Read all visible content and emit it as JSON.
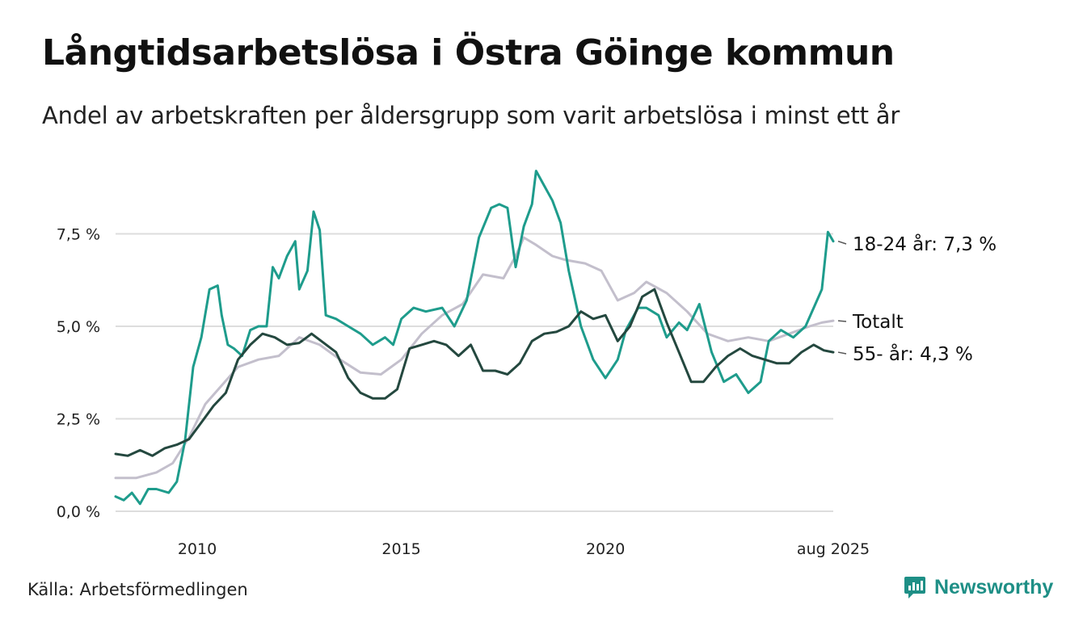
{
  "title": "Långtidsarbetslösa i Östra Göinge kommun",
  "subtitle": "Andel av arbetskraften per åldersgrupp som varit arbetslösa i minst ett år",
  "source": "Källa: Arbetsförmedlingen",
  "brand": "Newsworthy",
  "colors": {
    "youth": "#1e9c8c",
    "total": "#c3bfcc",
    "older": "#24483f",
    "grid": "#dddddd",
    "brand": "#1e8f86"
  },
  "chart_data": {
    "type": "line",
    "title": "Långtidsarbetslösa i Östra Göinge kommun",
    "subtitle": "Andel av arbetskraften per åldersgrupp som varit arbetslösa i minst ett år",
    "xlabel": "",
    "ylabel": "",
    "xlim": [
      2008.0,
      2025.58
    ],
    "ylim": [
      0,
      9.3
    ],
    "grid": "horizontal",
    "y_ticks": [
      0,
      2.5,
      5.0,
      7.5
    ],
    "y_tick_labels": [
      "0,0 %",
      "2,5 %",
      "5,0 %",
      "7,5 %"
    ],
    "x_ticks": [
      2010,
      2015,
      2020,
      2025.58
    ],
    "x_tick_labels": [
      "2010",
      "2015",
      "2020",
      "aug 2025"
    ],
    "end_labels": [
      "18-24 år: 7,3 %",
      "Totalt",
      "55- år: 4,3 %"
    ],
    "series": [
      {
        "name": "Totalt",
        "key": "total",
        "points": [
          [
            2008.0,
            0.9
          ],
          [
            2008.5,
            0.9
          ],
          [
            2009.0,
            1.05
          ],
          [
            2009.4,
            1.3
          ],
          [
            2009.8,
            2.0
          ],
          [
            2010.2,
            2.9
          ],
          [
            2010.6,
            3.4
          ],
          [
            2011.0,
            3.9
          ],
          [
            2011.5,
            4.1
          ],
          [
            2012.0,
            4.2
          ],
          [
            2012.5,
            4.7
          ],
          [
            2013.0,
            4.5
          ],
          [
            2013.5,
            4.1
          ],
          [
            2014.0,
            3.75
          ],
          [
            2014.5,
            3.7
          ],
          [
            2015.0,
            4.1
          ],
          [
            2015.5,
            4.8
          ],
          [
            2016.0,
            5.3
          ],
          [
            2016.5,
            5.6
          ],
          [
            2017.0,
            6.4
          ],
          [
            2017.5,
            6.3
          ],
          [
            2017.8,
            6.9
          ],
          [
            2018.0,
            7.4
          ],
          [
            2018.3,
            7.2
          ],
          [
            2018.7,
            6.9
          ],
          [
            2019.0,
            6.8
          ],
          [
            2019.5,
            6.7
          ],
          [
            2019.9,
            6.5
          ],
          [
            2020.3,
            5.7
          ],
          [
            2020.7,
            5.9
          ],
          [
            2021.0,
            6.2
          ],
          [
            2021.5,
            5.9
          ],
          [
            2022.0,
            5.4
          ],
          [
            2022.5,
            4.8
          ],
          [
            2023.0,
            4.6
          ],
          [
            2023.5,
            4.7
          ],
          [
            2024.0,
            4.6
          ],
          [
            2024.5,
            4.8
          ],
          [
            2025.0,
            5.0
          ],
          [
            2025.3,
            5.1
          ],
          [
            2025.58,
            5.15
          ]
        ]
      },
      {
        "name": "18-24 år",
        "key": "youth",
        "points": [
          [
            2008.0,
            0.4
          ],
          [
            2008.2,
            0.3
          ],
          [
            2008.4,
            0.5
          ],
          [
            2008.6,
            0.2
          ],
          [
            2008.8,
            0.6
          ],
          [
            2009.0,
            0.6
          ],
          [
            2009.3,
            0.5
          ],
          [
            2009.5,
            0.8
          ],
          [
            2009.7,
            1.9
          ],
          [
            2009.9,
            3.9
          ],
          [
            2010.1,
            4.7
          ],
          [
            2010.3,
            6.0
          ],
          [
            2010.5,
            6.1
          ],
          [
            2010.6,
            5.3
          ],
          [
            2010.75,
            4.5
          ],
          [
            2010.9,
            4.4
          ],
          [
            2011.1,
            4.2
          ],
          [
            2011.3,
            4.9
          ],
          [
            2011.5,
            5.0
          ],
          [
            2011.7,
            5.0
          ],
          [
            2011.85,
            6.6
          ],
          [
            2012.0,
            6.3
          ],
          [
            2012.2,
            6.9
          ],
          [
            2012.4,
            7.3
          ],
          [
            2012.5,
            6.0
          ],
          [
            2012.7,
            6.5
          ],
          [
            2012.85,
            8.1
          ],
          [
            2013.0,
            7.6
          ],
          [
            2013.15,
            5.3
          ],
          [
            2013.4,
            5.2
          ],
          [
            2013.7,
            5.0
          ],
          [
            2014.0,
            4.8
          ],
          [
            2014.3,
            4.5
          ],
          [
            2014.6,
            4.7
          ],
          [
            2014.8,
            4.5
          ],
          [
            2015.0,
            5.2
          ],
          [
            2015.3,
            5.5
          ],
          [
            2015.6,
            5.4
          ],
          [
            2016.0,
            5.5
          ],
          [
            2016.3,
            5.0
          ],
          [
            2016.6,
            5.7
          ],
          [
            2016.9,
            7.4
          ],
          [
            2017.2,
            8.2
          ],
          [
            2017.4,
            8.3
          ],
          [
            2017.6,
            8.2
          ],
          [
            2017.8,
            6.6
          ],
          [
            2018.0,
            7.7
          ],
          [
            2018.2,
            8.3
          ],
          [
            2018.3,
            9.2
          ],
          [
            2018.5,
            8.8
          ],
          [
            2018.7,
            8.4
          ],
          [
            2018.9,
            7.8
          ],
          [
            2019.1,
            6.5
          ],
          [
            2019.4,
            5.0
          ],
          [
            2019.7,
            4.1
          ],
          [
            2020.0,
            3.6
          ],
          [
            2020.3,
            4.1
          ],
          [
            2020.5,
            4.9
          ],
          [
            2020.8,
            5.5
          ],
          [
            2021.0,
            5.5
          ],
          [
            2021.3,
            5.3
          ],
          [
            2021.5,
            4.7
          ],
          [
            2021.8,
            5.1
          ],
          [
            2022.0,
            4.9
          ],
          [
            2022.3,
            5.6
          ],
          [
            2022.6,
            4.3
          ],
          [
            2022.9,
            3.5
          ],
          [
            2023.2,
            3.7
          ],
          [
            2023.5,
            3.2
          ],
          [
            2023.8,
            3.5
          ],
          [
            2024.0,
            4.6
          ],
          [
            2024.3,
            4.9
          ],
          [
            2024.6,
            4.7
          ],
          [
            2024.9,
            5.0
          ],
          [
            2025.1,
            5.5
          ],
          [
            2025.3,
            6.0
          ],
          [
            2025.45,
            7.55
          ],
          [
            2025.58,
            7.3
          ]
        ]
      },
      {
        "name": "55- år",
        "key": "older",
        "points": [
          [
            2008.0,
            1.55
          ],
          [
            2008.3,
            1.5
          ],
          [
            2008.6,
            1.65
          ],
          [
            2008.9,
            1.5
          ],
          [
            2009.2,
            1.7
          ],
          [
            2009.5,
            1.8
          ],
          [
            2009.8,
            1.95
          ],
          [
            2010.1,
            2.4
          ],
          [
            2010.4,
            2.85
          ],
          [
            2010.7,
            3.2
          ],
          [
            2011.0,
            4.1
          ],
          [
            2011.3,
            4.5
          ],
          [
            2011.6,
            4.8
          ],
          [
            2011.9,
            4.7
          ],
          [
            2012.2,
            4.5
          ],
          [
            2012.5,
            4.55
          ],
          [
            2012.8,
            4.8
          ],
          [
            2013.1,
            4.55
          ],
          [
            2013.4,
            4.3
          ],
          [
            2013.7,
            3.6
          ],
          [
            2014.0,
            3.2
          ],
          [
            2014.3,
            3.05
          ],
          [
            2014.6,
            3.05
          ],
          [
            2014.9,
            3.3
          ],
          [
            2015.2,
            4.4
          ],
          [
            2015.5,
            4.5
          ],
          [
            2015.8,
            4.6
          ],
          [
            2016.1,
            4.5
          ],
          [
            2016.4,
            4.2
          ],
          [
            2016.7,
            4.5
          ],
          [
            2017.0,
            3.8
          ],
          [
            2017.3,
            3.8
          ],
          [
            2017.6,
            3.7
          ],
          [
            2017.9,
            4.0
          ],
          [
            2018.2,
            4.6
          ],
          [
            2018.5,
            4.8
          ],
          [
            2018.8,
            4.85
          ],
          [
            2019.1,
            5.0
          ],
          [
            2019.4,
            5.4
          ],
          [
            2019.7,
            5.2
          ],
          [
            2020.0,
            5.3
          ],
          [
            2020.3,
            4.6
          ],
          [
            2020.6,
            5.0
          ],
          [
            2020.9,
            5.8
          ],
          [
            2021.2,
            6.0
          ],
          [
            2021.5,
            5.1
          ],
          [
            2021.8,
            4.3
          ],
          [
            2022.1,
            3.5
          ],
          [
            2022.4,
            3.5
          ],
          [
            2022.7,
            3.9
          ],
          [
            2023.0,
            4.2
          ],
          [
            2023.3,
            4.4
          ],
          [
            2023.6,
            4.2
          ],
          [
            2023.9,
            4.1
          ],
          [
            2024.2,
            4.0
          ],
          [
            2024.5,
            4.0
          ],
          [
            2024.8,
            4.3
          ],
          [
            2025.1,
            4.5
          ],
          [
            2025.35,
            4.35
          ],
          [
            2025.58,
            4.3
          ]
        ]
      }
    ]
  }
}
